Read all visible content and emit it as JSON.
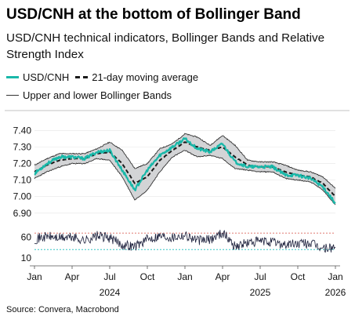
{
  "title": "USD/CNH at the bottom of Bollinger Band",
  "subtitle": "USD/CNH technical indicators, Bollinger Bands and Relative Strength Index",
  "legend": {
    "usdcnh": "USD/CNH",
    "ma": "21-day moving average",
    "bands": "Upper and lower Bollinger Bands"
  },
  "source": "Source: Convera, Macrobond",
  "colors": {
    "usdcnh": "#19b8a9",
    "ma": "#1a1a1a",
    "band_line": "#333333",
    "band_fill": "#d3d4d6",
    "rsi": "#1b1f3b",
    "rsi_upper": "#e07a72",
    "rsi_lower": "#36c6c6"
  },
  "chart_data": [
    {
      "type": "line",
      "name": "price",
      "ylim": [
        6.88,
        7.44
      ],
      "yticks": [
        6.9,
        7.0,
        7.1,
        7.2,
        7.3,
        7.4
      ],
      "ytick_labels": [
        "6.90",
        "7.00",
        "7.10",
        "7.20",
        "7.30",
        "7.40"
      ],
      "x": [
        "2024-01",
        "2024-02",
        "2024-03",
        "2024-04",
        "2024-05",
        "2024-06",
        "2024-07",
        "2024-08",
        "2024-09",
        "2024-10",
        "2024-11",
        "2024-12",
        "2025-01",
        "2025-02",
        "2025-03",
        "2025-04",
        "2025-05",
        "2025-06",
        "2025-07",
        "2025-08",
        "2025-09",
        "2025-10",
        "2025-11",
        "2025-12",
        "2026-01"
      ],
      "series": [
        {
          "name": "USD/CNH",
          "values": [
            7.14,
            7.2,
            7.24,
            7.24,
            7.23,
            7.27,
            7.28,
            7.16,
            7.04,
            7.16,
            7.25,
            7.3,
            7.35,
            7.29,
            7.27,
            7.32,
            7.21,
            7.18,
            7.18,
            7.18,
            7.13,
            7.13,
            7.11,
            7.06,
            6.96
          ]
        },
        {
          "name": "21-day moving average",
          "values": [
            7.15,
            7.19,
            7.22,
            7.23,
            7.23,
            7.26,
            7.27,
            7.2,
            7.08,
            7.12,
            7.22,
            7.28,
            7.33,
            7.3,
            7.28,
            7.3,
            7.24,
            7.19,
            7.18,
            7.18,
            7.15,
            7.13,
            7.12,
            7.08,
            7.0
          ]
        },
        {
          "name": "Upper Bollinger Band",
          "values": [
            7.19,
            7.23,
            7.26,
            7.26,
            7.26,
            7.29,
            7.33,
            7.28,
            7.17,
            7.2,
            7.29,
            7.32,
            7.38,
            7.36,
            7.31,
            7.37,
            7.31,
            7.22,
            7.21,
            7.21,
            7.19,
            7.16,
            7.15,
            7.12,
            7.05
          ]
        },
        {
          "name": "Lower Bollinger Band",
          "values": [
            7.11,
            7.15,
            7.18,
            7.2,
            7.2,
            7.23,
            7.22,
            7.12,
            6.98,
            7.04,
            7.15,
            7.24,
            7.28,
            7.24,
            7.25,
            7.23,
            7.17,
            7.16,
            7.15,
            7.15,
            7.11,
            7.1,
            7.09,
            7.04,
            6.95
          ]
        }
      ]
    },
    {
      "type": "line",
      "name": "rsi",
      "ylim": [
        0,
        80
      ],
      "yticks": [
        10,
        60
      ],
      "ytick_labels": [
        "10",
        "60"
      ],
      "reference_lines": [
        70,
        30
      ],
      "x": [
        "2024-01",
        "2024-02",
        "2024-03",
        "2024-04",
        "2024-05",
        "2024-06",
        "2024-07",
        "2024-08",
        "2024-09",
        "2024-10",
        "2024-11",
        "2024-12",
        "2025-01",
        "2025-02",
        "2025-03",
        "2025-04",
        "2025-05",
        "2025-06",
        "2025-07",
        "2025-08",
        "2025-09",
        "2025-10",
        "2025-11",
        "2025-12",
        "2026-01"
      ],
      "series": [
        {
          "name": "RSI",
          "values": [
            55,
            62,
            58,
            60,
            52,
            63,
            58,
            42,
            38,
            55,
            64,
            60,
            66,
            52,
            54,
            72,
            38,
            46,
            50,
            48,
            42,
            44,
            45,
            32,
            35
          ]
        }
      ],
      "xtick_labels": [
        "Jan",
        "Apr",
        "Jul",
        "Oct",
        "Jan",
        "Apr",
        "Jul",
        "Oct",
        "Jan"
      ],
      "year_labels": [
        "2024",
        "2025",
        "2026"
      ]
    }
  ]
}
